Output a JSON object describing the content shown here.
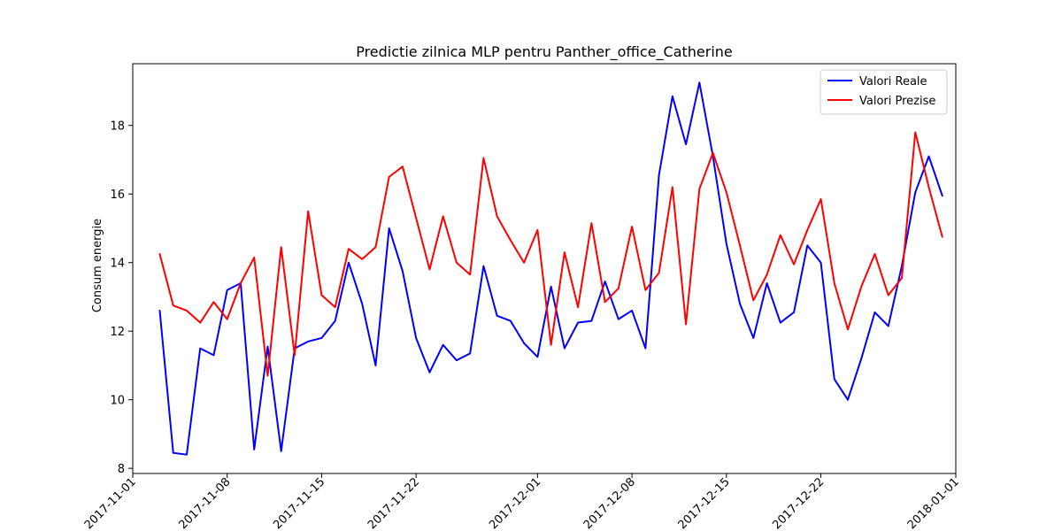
{
  "chart_data": {
    "type": "line",
    "title": "Predictie zilnica MLP pentru Panther_office_Catherine",
    "xlabel": "",
    "ylabel": "Consum energie",
    "x_start": "2017-11-03",
    "x_end": "2017-12-31",
    "xlim": [
      "2017-11-01",
      "2018-01-01"
    ],
    "ylim": [
      7.85,
      19.8
    ],
    "x_ticks": [
      {
        "date": "2017-11-01",
        "label": "2017-11-01"
      },
      {
        "date": "2017-11-08",
        "label": "2017-11-08"
      },
      {
        "date": "2017-11-15",
        "label": "2017-11-15"
      },
      {
        "date": "2017-11-22",
        "label": "2017-11-22"
      },
      {
        "date": "2017-12-01",
        "label": "2017-12-01"
      },
      {
        "date": "2017-12-08",
        "label": "2017-12-08"
      },
      {
        "date": "2017-12-15",
        "label": "2017-12-15"
      },
      {
        "date": "2017-12-22",
        "label": "2017-12-22"
      },
      {
        "date": "2018-01-01",
        "label": "2018-01-01"
      }
    ],
    "y_ticks": [
      8,
      10,
      12,
      14,
      16,
      18
    ],
    "grid": false,
    "legend_position": "top-right",
    "series": [
      {
        "name": "Valori Reale",
        "color": "#0000ff",
        "values": [
          12.6,
          8.45,
          8.4,
          11.5,
          11.3,
          13.2,
          13.4,
          8.55,
          11.55,
          8.5,
          11.5,
          11.7,
          11.8,
          12.3,
          14.0,
          12.8,
          11.0,
          15.0,
          13.75,
          11.8,
          10.8,
          11.6,
          11.15,
          11.35,
          13.9,
          12.45,
          12.3,
          11.65,
          11.25,
          13.3,
          11.5,
          12.25,
          12.3,
          13.45,
          12.35,
          12.6,
          11.5,
          16.55,
          18.85,
          17.45,
          19.25,
          17.1,
          14.55,
          12.8,
          11.8,
          13.4,
          12.25,
          12.55,
          14.5,
          14.0,
          10.6,
          10.0,
          11.2,
          12.55,
          12.15,
          13.9,
          16.05,
          17.1,
          15.95
        ]
      },
      {
        "name": "Valori Prezise",
        "color": "#ff0000",
        "values": [
          14.25,
          12.75,
          12.6,
          12.25,
          12.85,
          12.35,
          13.4,
          14.15,
          10.7,
          14.45,
          11.3,
          15.5,
          13.05,
          12.7,
          14.4,
          14.1,
          14.45,
          16.5,
          16.8,
          15.3,
          13.8,
          15.35,
          14.0,
          13.65,
          17.05,
          15.35,
          14.65,
          14.0,
          14.95,
          11.6,
          14.3,
          12.7,
          15.15,
          12.85,
          13.25,
          15.05,
          13.2,
          13.7,
          16.2,
          12.2,
          16.15,
          17.2,
          16.05,
          14.5,
          12.9,
          13.65,
          14.8,
          13.95,
          14.95,
          15.85,
          13.4,
          12.05,
          13.3,
          14.25,
          13.05,
          13.55,
          17.8,
          16.2,
          14.75
        ]
      }
    ]
  }
}
